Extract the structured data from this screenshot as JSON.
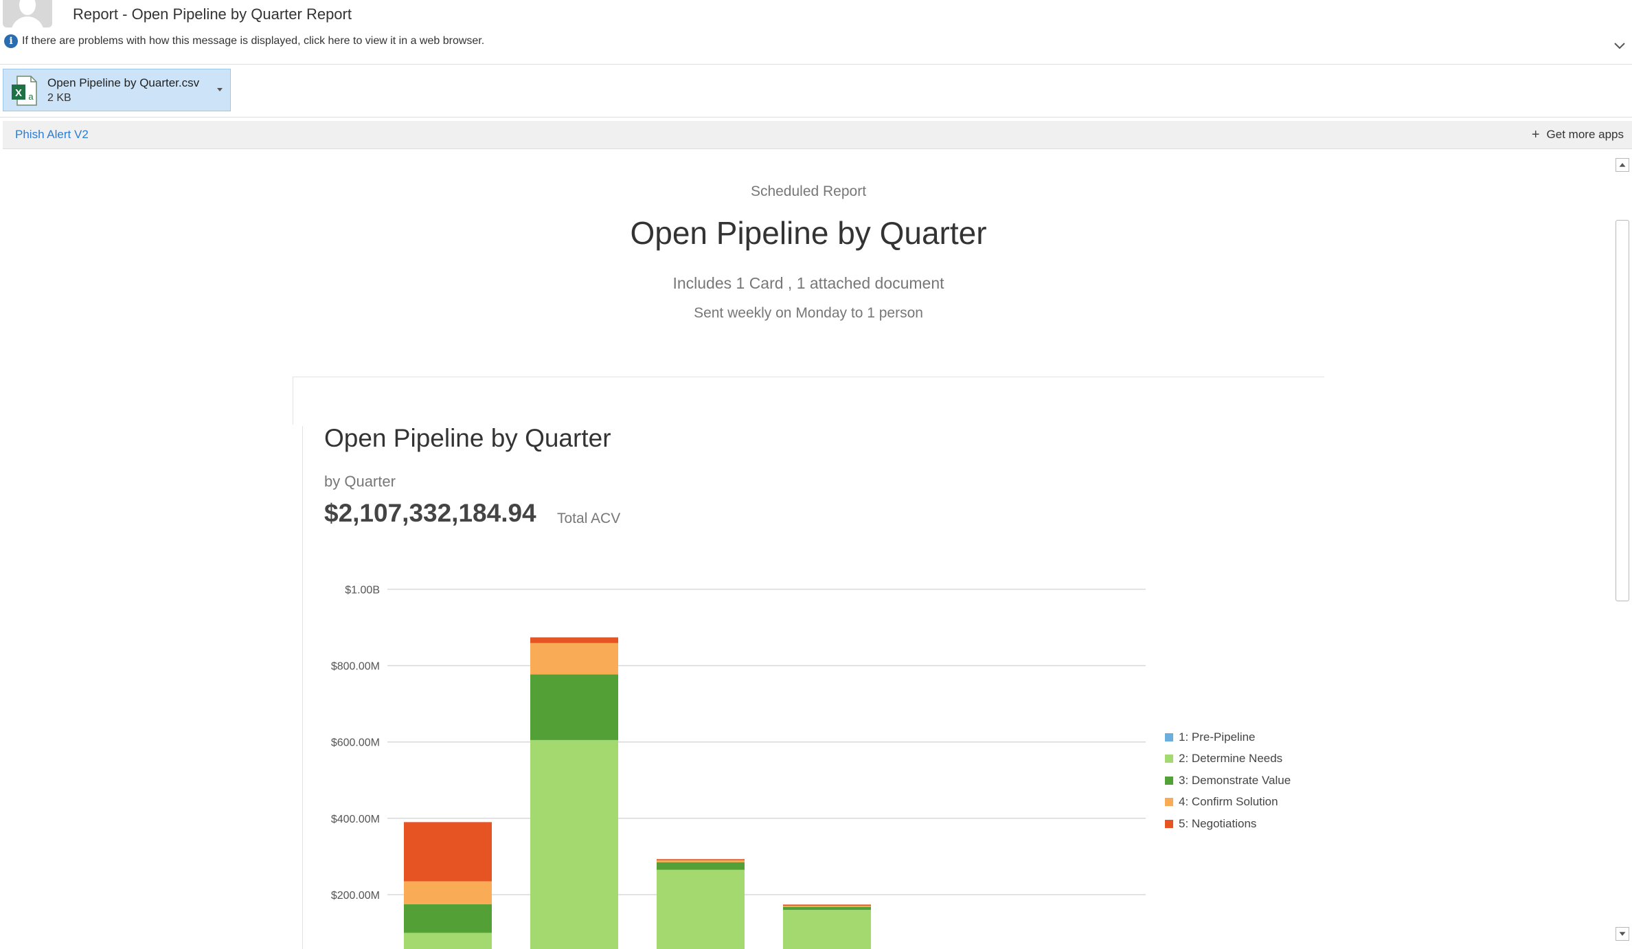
{
  "header": {
    "subject": "Report - Open Pipeline by Quarter Report",
    "info_text": "If there are problems with how this message is displayed, click here to view it in a web browser.",
    "info_icon": "info-icon",
    "collapse_icon": "chevron-down-icon"
  },
  "attachment": {
    "name": "Open Pipeline by Quarter.csv",
    "size": "2 KB",
    "icon": "excel-file-icon"
  },
  "apps": {
    "phish": "Phish Alert V2",
    "get_more": "Get more apps"
  },
  "report": {
    "label": "Scheduled Report",
    "title": "Open Pipeline by Quarter",
    "includes": "Includes 1 Card , 1 attached document",
    "sent": "Sent weekly on Monday to 1 person"
  },
  "card": {
    "title": "Open Pipeline by Quarter",
    "subtitle": "by Quarter",
    "total": "$2,107,332,184.94",
    "total_label": "Total ACV"
  },
  "colors": {
    "accent_link": "#2b7cd3",
    "attachment_bg": "#cde3f7"
  },
  "chart_data": {
    "type": "bar",
    "stacked": true,
    "y_tick_labels": [
      "$200.00M",
      "$400.00M",
      "$600.00M",
      "$800.00M",
      "$1.00B"
    ],
    "y_ticks": [
      200,
      400,
      600,
      800,
      1000
    ],
    "ylim": [
      0,
      1000
    ],
    "grid": true,
    "legend_position": "right",
    "series": [
      {
        "name": "1: Pre-Pipeline",
        "color": "#6aaede",
        "values": [
          0,
          40,
          0,
          0,
          0,
          0
        ]
      },
      {
        "name": "2: Determine Needs",
        "color": "#a3d96f",
        "values": [
          100,
          565,
          265,
          160,
          0,
          4
        ]
      },
      {
        "name": "3: Demonstrate Value",
        "color": "#52a036",
        "values": [
          75,
          172,
          20,
          8,
          0,
          2
        ]
      },
      {
        "name": "4: Confirm Solution",
        "color": "#f9ab55",
        "values": [
          60,
          82,
          5,
          3,
          0,
          0
        ]
      },
      {
        "name": "5: Negotiations",
        "color": "#e65424",
        "values": [
          155,
          15,
          3,
          3,
          0,
          0
        ]
      }
    ]
  }
}
